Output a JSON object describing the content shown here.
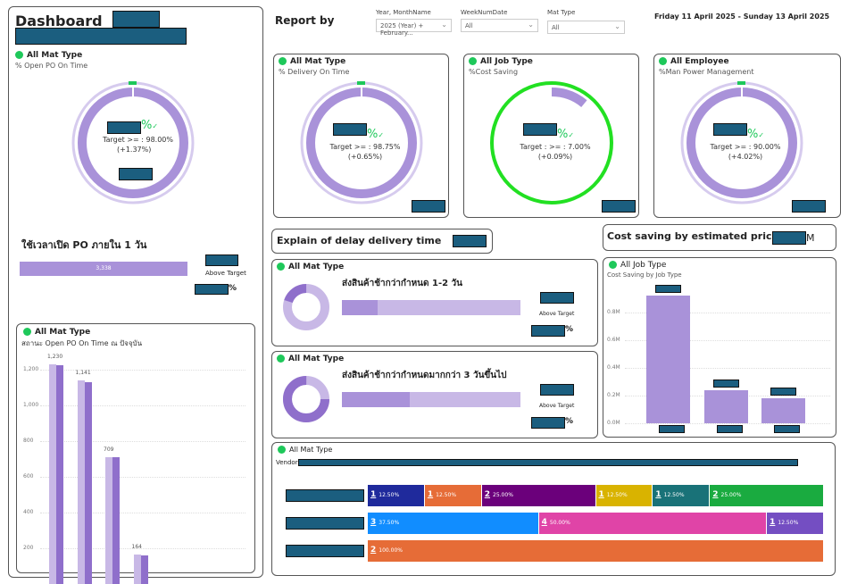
{
  "left_panel": {
    "title": "Dashboard",
    "gauge": {
      "filter": "All Mat Type",
      "subtitle": "% Open PO On Time",
      "percent_sign": "%",
      "check": "✓",
      "target": "Target >= : 98.00%",
      "delta": "(+1.37%)"
    },
    "po_open": {
      "title": "ใช้เวลาเปิด PO ภายใน 1 วัน",
      "bar_value": "3,338",
      "above_target": "Above Target",
      "percent_sign": "%"
    }
  },
  "bar_chart": {
    "filter": "All Mat Type",
    "subtitle": "สถานะ Open PO On Time ณ ปัจจุบัน"
  },
  "chart_data": [
    {
      "type": "bar",
      "title": "สถานะ Open PO On Time ณ ปัจจุบัน",
      "data_labels": [
        "1,230",
        "1,141",
        "709",
        "164"
      ],
      "values_a": [
        1230,
        1141,
        709,
        164
      ],
      "values_b": [
        1225,
        1132,
        709,
        162
      ],
      "yticks": [
        "1,200",
        "1,000",
        "800",
        "600",
        "400",
        "200"
      ],
      "ylim": [
        0,
        1300
      ],
      "grid": true
    },
    {
      "type": "bar",
      "title": "Cost Saving by Job Type",
      "values": [
        0.92,
        0.24,
        0.18
      ],
      "yticks": [
        "0.8M",
        "0.6M",
        "0.4M",
        "0.2M",
        "0.0M"
      ],
      "ylim": [
        0,
        1.0
      ],
      "grid": true
    },
    {
      "type": "bar",
      "orientation": "horizontal",
      "stacked": true,
      "label": "Vendor",
      "rows": [
        [
          {
            "count": "1",
            "pct": "12.50%",
            "value": 12.5,
            "color": "#1f2a9c"
          },
          {
            "count": "1",
            "pct": "12.50%",
            "value": 12.5,
            "color": "#e66c37"
          },
          {
            "count": "2",
            "pct": "25.00%",
            "value": 25,
            "color": "#6b007b"
          },
          {
            "count": "1",
            "pct": "12.50%",
            "value": 12.5,
            "color": "#d9b300"
          },
          {
            "count": "1",
            "pct": "12.50%",
            "value": 12.5,
            "color": "#197278"
          },
          {
            "count": "2",
            "pct": "25.00%",
            "value": 25,
            "color": "#1aab40"
          }
        ],
        [
          {
            "count": "3",
            "pct": "37.50%",
            "value": 37.5,
            "color": "#118dff"
          },
          {
            "count": "4",
            "pct": "50.00%",
            "value": 50,
            "color": "#e044a7"
          },
          {
            "count": "1",
            "pct": "12.50%",
            "value": 12.5,
            "color": "#744ec2"
          }
        ],
        [
          {
            "count": "2",
            "pct": "100.00%",
            "value": 100,
            "color": "#e66c37"
          }
        ]
      ]
    }
  ],
  "header": {
    "report_by": "Report by",
    "date_range": "Friday 11 April 2025 - Sunday 13 April 2025",
    "filters": [
      {
        "label": "Year, MonthName",
        "value": "2025 (Year) + February..."
      },
      {
        "label": "WeekNumDate",
        "value": "All"
      },
      {
        "label": "Mat Type",
        "value": "All"
      }
    ]
  },
  "gauges": [
    {
      "filter": "All Mat Type",
      "subtitle": "% Delivery On Time",
      "target": "Target >= : 98.75%",
      "delta": "(+0.65%)",
      "progress": 0.99,
      "percent_sign": "%",
      "check": "✓"
    },
    {
      "filter": "All Job Type",
      "subtitle": "%Cost Saving",
      "target": "Target : >= : 7.00%",
      "delta": "(+0.09%)",
      "progress": 0.11,
      "percent_sign": "%",
      "check": "✓"
    },
    {
      "filter": "All Employee",
      "subtitle": "%Man Power Management",
      "target": "Target >= : 90.00%",
      "delta": "(+4.02%)",
      "progress": 0.99,
      "percent_sign": "%",
      "check": "✓"
    }
  ],
  "delay": {
    "title": "Explain of delay delivery time",
    "items": [
      {
        "filter": "All Mat Type",
        "title": "ส่งสินค้าช้ากว่ากำหนด 1-2 วัน",
        "fill": 0.2,
        "above_target": "Above Target",
        "percent_sign": "%"
      },
      {
        "filter": "All Mat Type",
        "title": "ส่งสินค้าช้ากว่ากำหนดมากกว่า 3 วันขึ้นไป",
        "fill": 0.38,
        "above_target": "Above Target",
        "percent_sign": "%"
      }
    ]
  },
  "cost": {
    "title": "Cost saving by estimated price",
    "unit": "M",
    "filter": "All Job Type",
    "subtitle": "Cost Saving by Job Type"
  },
  "vendor": {
    "filter": "All Mat Type",
    "label": "Vendor"
  },
  "colors": {
    "purple": "#a992d9",
    "light_purple": "#c8b8e6",
    "green": "#1ec85a",
    "redaction": "#1b5e7f"
  }
}
